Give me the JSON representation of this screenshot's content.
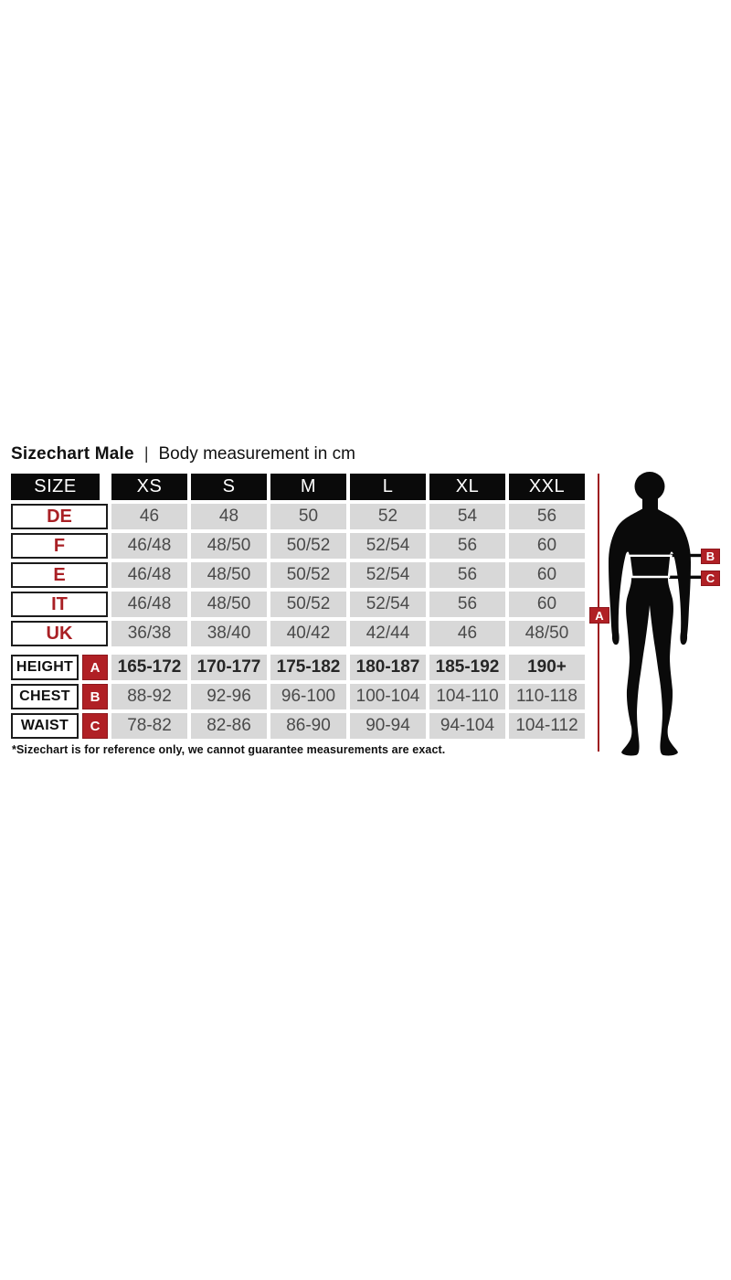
{
  "title": {
    "bold": "Sizechart Male",
    "separator": "|",
    "regular": "Body measurement in cm"
  },
  "colors": {
    "accent_red": "#a92025",
    "badge_red": "#b02025",
    "line_red": "#9e1b20",
    "header_bg": "#0a0a0a",
    "cell_bg": "#d8d8d8",
    "cell_text": "#4a4a4a"
  },
  "size_table": {
    "header": [
      "SIZE",
      "XS",
      "S",
      "M",
      "L",
      "XL",
      "XXL"
    ],
    "rows": [
      {
        "label": "DE",
        "values": [
          "46",
          "48",
          "50",
          "52",
          "54",
          "56"
        ]
      },
      {
        "label": "F",
        "values": [
          "46/48",
          "48/50",
          "50/52",
          "52/54",
          "56",
          "60"
        ]
      },
      {
        "label": "E",
        "values": [
          "46/48",
          "48/50",
          "50/52",
          "52/54",
          "56",
          "60"
        ]
      },
      {
        "label": "IT",
        "values": [
          "46/48",
          "48/50",
          "50/52",
          "52/54",
          "56",
          "60"
        ]
      },
      {
        "label": "UK",
        "values": [
          "36/38",
          "38/40",
          "40/42",
          "42/44",
          "46",
          "48/50"
        ]
      }
    ]
  },
  "body_table": {
    "rows": [
      {
        "label": "HEIGHT",
        "badge": "A",
        "bold": true,
        "values": [
          "165-172",
          "170-177",
          "175-182",
          "180-187",
          "185-192",
          "190+"
        ]
      },
      {
        "label": "CHEST",
        "badge": "B",
        "bold": false,
        "values": [
          "88-92",
          "92-96",
          "96-100",
          "100-104",
          "104-110",
          "110-118"
        ]
      },
      {
        "label": "WAIST",
        "badge": "C",
        "bold": false,
        "values": [
          "78-82",
          "82-86",
          "86-90",
          "90-94",
          "94-104",
          "104-112"
        ]
      }
    ]
  },
  "footnote": "*Sizechart is for reference only, we cannot guarantee measurements are exact.",
  "figure": {
    "badge_a": "A",
    "badge_b": "B",
    "badge_c": "C"
  }
}
